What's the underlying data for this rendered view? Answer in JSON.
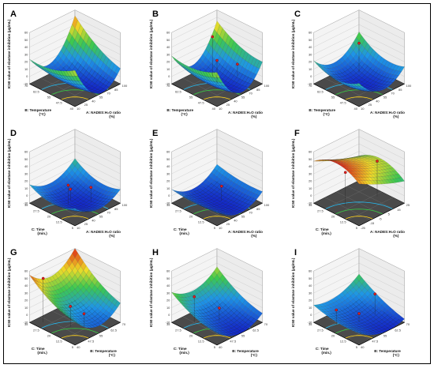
{
  "chart_data": [
    {
      "id": "A",
      "label": "A",
      "type": "surface3d",
      "ylabel": "IC50 value of elastase inhibition (µg/mL)",
      "xlabel": "A: NADES:H₂O ratio",
      "xunit": "(%)",
      "zlabel": "B: Temperature",
      "zunit": "(°C)",
      "xticks": [
        "10",
        "25",
        "40",
        "55",
        "70",
        "85",
        "100"
      ],
      "zticks": [
        "40",
        "47.5",
        "55",
        "62.5",
        "70"
      ],
      "yticks": [
        "-10",
        "0",
        "10",
        "20",
        "30",
        "40",
        "50",
        "60"
      ],
      "ylim": [
        -10,
        60
      ],
      "coef": {
        "a": 0.42,
        "b": 0.18,
        "c": 0.08,
        "d": 0.0,
        "e": 0.08,
        "f": 0.0
      },
      "range": [
        -10,
        52
      ],
      "design_points": []
    },
    {
      "id": "B",
      "label": "B",
      "type": "surface3d",
      "ylabel": "IC50 value of elastase inhibition (µg/mL)",
      "xlabel": "A: NADES:H₂O ratio",
      "xunit": "(%)",
      "zlabel": "B: Temperature",
      "zunit": "(°C)",
      "xticks": [
        "10",
        "25",
        "40",
        "55",
        "70",
        "85",
        "100"
      ],
      "zticks": [
        "40",
        "47.5",
        "55",
        "62.5",
        "70"
      ],
      "yticks": [
        "-10",
        "0",
        "10",
        "20",
        "30",
        "40",
        "50",
        "60"
      ],
      "ylim": [
        -10,
        60
      ],
      "coef": {
        "a": 0.42,
        "b": 0.1,
        "c": 0.08,
        "d": 0.0,
        "e": 0.05,
        "f": 0.0
      },
      "range": [
        -10,
        45
      ],
      "design_points": [
        {
          "u": 0.6,
          "v": 0.7,
          "z": 45
        },
        {
          "u": 0.5,
          "v": 0.5,
          "z": 22
        },
        {
          "u": 0.9,
          "v": 0.45,
          "z": 6
        }
      ]
    },
    {
      "id": "C",
      "label": "C",
      "type": "surface3d",
      "ylabel": "IC50 value of elastase inhibition (µg/mL)",
      "xlabel": "A: NADES:H₂O ratio",
      "xunit": "(%)",
      "zlabel": "B: Temperature",
      "zunit": "(°C)",
      "xticks": [
        "10",
        "25",
        "40",
        "55",
        "70",
        "85",
        "100"
      ],
      "zticks": [
        "40",
        "47.5",
        "55",
        "62.5",
        "70"
      ],
      "yticks": [
        "-10",
        "0",
        "10",
        "20",
        "30",
        "40",
        "50",
        "60"
      ],
      "ylim": [
        -10,
        60
      ],
      "coef": {
        "a": 0.2,
        "b": 0.04,
        "c": 0.1,
        "d": 0.0,
        "e": 0.04,
        "f": 0.0
      },
      "range": [
        -10,
        30
      ],
      "design_points": [
        {
          "u": 0.75,
          "v": 0.75,
          "z": 30
        }
      ]
    },
    {
      "id": "D",
      "label": "D",
      "type": "surface3d",
      "ylabel": "IC50 value of elastase inhibition (µg/mL)",
      "xlabel": "A: NADES:H₂O ratio",
      "xunit": "(%)",
      "zlabel": "C: Time",
      "zunit": "(min.)",
      "xticks": [
        "10",
        "25",
        "40",
        "55",
        "70",
        "85",
        "100"
      ],
      "zticks": [
        "5",
        "12.5",
        "20",
        "27.5",
        "35"
      ],
      "yticks": [
        "-10",
        "0",
        "10",
        "20",
        "30",
        "40",
        "50",
        "60"
      ],
      "ylim": [
        -10,
        60
      ],
      "coef": {
        "a": 0.18,
        "b": 0.03,
        "c": 0.12,
        "d": 0.0,
        "e": 0.04,
        "f": 0.0
      },
      "range": [
        -10,
        20
      ],
      "design_points": [
        {
          "u": 0.4,
          "v": 0.55,
          "z": 16
        },
        {
          "u": 0.7,
          "v": 0.35,
          "z": 10
        },
        {
          "u": 0.5,
          "v": 0.6,
          "z": 6
        }
      ]
    },
    {
      "id": "E",
      "label": "E",
      "type": "surface3d",
      "ylabel": "IC50 value of elastase inhibition (µg/mL)",
      "xlabel": "A: NADES:H₂O ratio",
      "xunit": "(%)",
      "zlabel": "C: Time",
      "zunit": "(min.)",
      "xticks": [
        "10",
        "25",
        "40",
        "55",
        "70",
        "85",
        "100"
      ],
      "zticks": [
        "5",
        "12.5",
        "20",
        "27.5",
        "35"
      ],
      "yticks": [
        "-10",
        "0",
        "10",
        "20",
        "30",
        "40",
        "50",
        "60"
      ],
      "ylim": [
        -10,
        60
      ],
      "coef": {
        "a": 0.2,
        "b": 0.02,
        "c": 0.04,
        "d": 0.0,
        "e": 0.02,
        "f": 0.0
      },
      "range": [
        -10,
        12
      ],
      "design_points": [
        {
          "u": 0.6,
          "v": 0.5,
          "z": 10
        }
      ]
    },
    {
      "id": "F",
      "label": "F",
      "type": "surface3d",
      "ylabel": "IC50 value of elastase inhibition (µg/mL)",
      "xlabel": "A: NADES:H₂O ratio",
      "xunit": "(%)",
      "zlabel": "C: Time",
      "zunit": "(min.)",
      "xticks": [
        "-25",
        "-15",
        "-5",
        "5",
        "15",
        "25"
      ],
      "zticks": [
        "5",
        "12.5",
        "20",
        "27.5",
        "35"
      ],
      "yticks": [
        "-10",
        "0",
        "10",
        "20",
        "30",
        "40",
        "50",
        "60"
      ],
      "ylim": [
        -10,
        60
      ],
      "coef": {
        "a": 0.05,
        "b": 0.02,
        "c": -0.3,
        "d": -0.3,
        "e": 0.02,
        "f": 0.0
      },
      "range": [
        20,
        60
      ],
      "design_points": [
        {
          "u": 0.85,
          "v": 0.45,
          "z": 38
        },
        {
          "u": 0.3,
          "v": 0.6,
          "z": 35
        }
      ]
    },
    {
      "id": "G",
      "label": "G",
      "type": "surface3d",
      "ylabel": "IC50 value of elastase inhibition (µg/mL)",
      "xlabel": "B: Temperature",
      "xunit": "(°C)",
      "zlabel": "C: Time",
      "zunit": "(min.)",
      "xticks": [
        "40",
        "47.5",
        "55",
        "62.5",
        "70"
      ],
      "zticks": [
        "5",
        "12.5",
        "20",
        "27.5",
        "35"
      ],
      "yticks": [
        "-10",
        "0",
        "10",
        "20",
        "30",
        "40",
        "50",
        "60"
      ],
      "ylim": [
        -10,
        60
      ],
      "coef": {
        "a": 0.35,
        "b": 0.05,
        "c": 0.12,
        "d": 0.0,
        "e": 0.35,
        "f": 0.0
      },
      "range": [
        0,
        60
      ],
      "design_points": [
        {
          "u": 0.15,
          "v": 0.85,
          "z": 50
        },
        {
          "u": 0.5,
          "v": 0.3,
          "z": 8
        },
        {
          "u": 0.35,
          "v": 0.45,
          "z": 18
        }
      ]
    },
    {
      "id": "H",
      "label": "H",
      "type": "surface3d",
      "ylabel": "IC50 value of elastase inhibition (µg/mL)",
      "xlabel": "B: Temperature",
      "xunit": "(°C)",
      "zlabel": "C: Time",
      "zunit": "(min.)",
      "xticks": [
        "40",
        "47.5",
        "55",
        "62.5",
        "70"
      ],
      "zticks": [
        "5",
        "12.5",
        "20",
        "27.5",
        "35"
      ],
      "yticks": [
        "-10",
        "0",
        "10",
        "20",
        "30",
        "40",
        "50",
        "60"
      ],
      "ylim": [
        -10,
        60
      ],
      "coef": {
        "a": 0.3,
        "b": 0.04,
        "c": 0.12,
        "d": 0.0,
        "e": 0.3,
        "f": 0.0
      },
      "range": [
        -10,
        35
      ],
      "design_points": [
        {
          "u": 0.25,
          "v": 0.75,
          "z": 25
        },
        {
          "u": 0.55,
          "v": 0.5,
          "z": 8
        }
      ]
    },
    {
      "id": "I",
      "label": "I",
      "type": "surface3d",
      "ylabel": "IC50 value of elastase inhibition (µg/mL)",
      "xlabel": "B: Temperature",
      "xunit": "(°C)",
      "zlabel": "C: Time",
      "zunit": "(min.)",
      "xticks": [
        "40",
        "47.5",
        "55",
        "62.5",
        "70"
      ],
      "zticks": [
        "5",
        "12.5",
        "20",
        "27.5",
        "35"
      ],
      "yticks": [
        "-10",
        "0",
        "10",
        "20",
        "30",
        "40",
        "50",
        "60"
      ],
      "ylim": [
        -10,
        60
      ],
      "coef": {
        "a": 0.25,
        "b": 0.15,
        "c": 0.1,
        "d": 0.0,
        "e": 0.25,
        "f": 0.0
      },
      "range": [
        -10,
        25
      ],
      "design_points": [
        {
          "u": 0.2,
          "v": 0.7,
          "z": 10
        },
        {
          "u": 0.85,
          "v": 0.5,
          "z": 18
        },
        {
          "u": 0.5,
          "v": 0.5,
          "z": 2
        }
      ]
    }
  ]
}
